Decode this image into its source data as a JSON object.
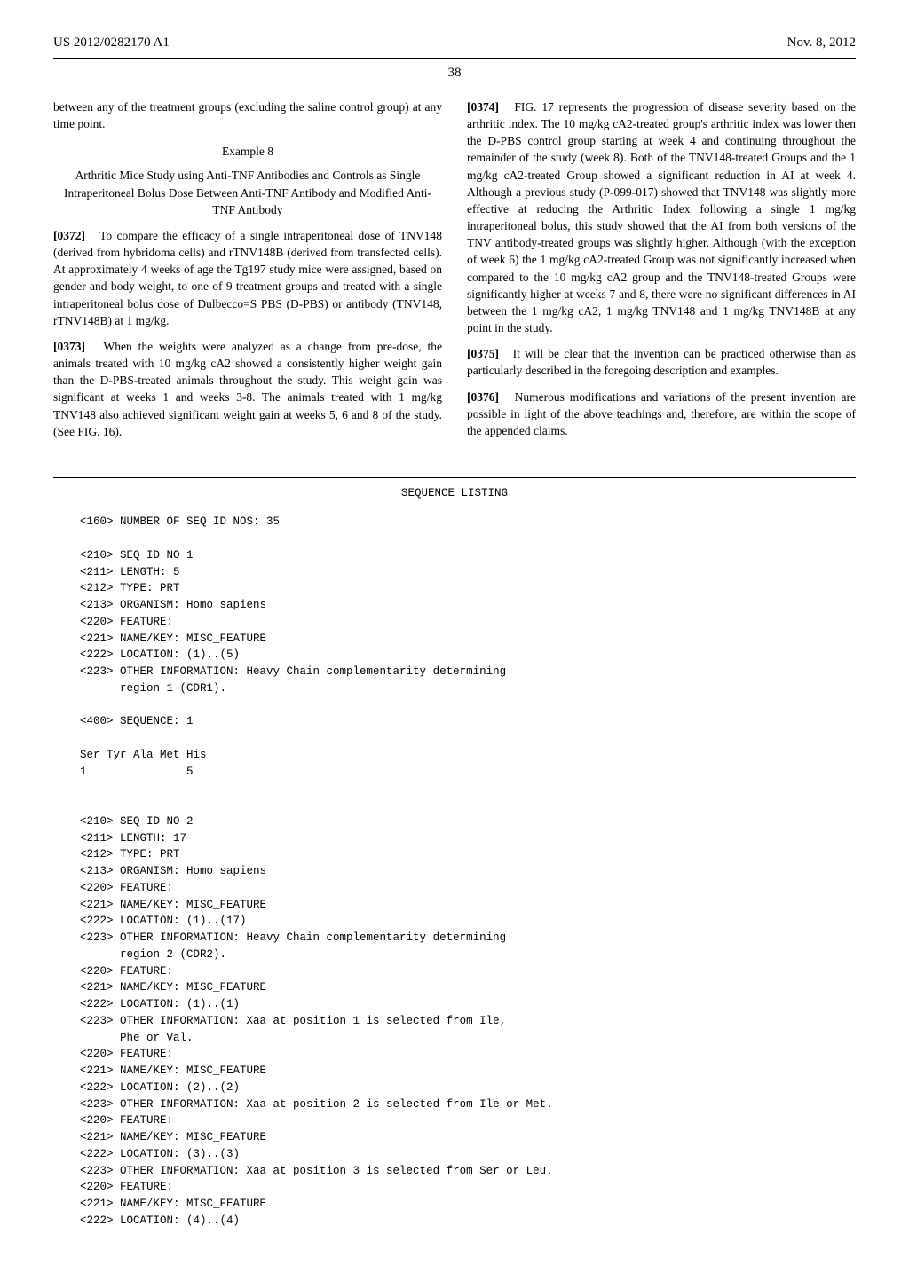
{
  "header": {
    "pub_number": "US 2012/0282170 A1",
    "pub_date": "Nov. 8, 2012"
  },
  "page_number": "38",
  "left_col": {
    "p1": "between any of the treatment groups (excluding the saline control group) at any time point.",
    "example_num": "Example 8",
    "example_title": "Arthritic Mice Study using Anti-TNF Antibodies and Controls as Single Intraperitoneal Bolus Dose Between Anti-TNF Antibody and Modified Anti-TNF Antibody",
    "p372_num": "[0372]",
    "p372": "To compare the efficacy of a single intraperitoneal dose of TNV148 (derived from hybridoma cells) and rTNV148B (derived from transfected cells). At approximately 4 weeks of age the Tg197 study mice were assigned, based on gender and body weight, to one of 9 treatment groups and treated with a single intraperitoneal bolus dose of Dulbecco=S PBS (D-PBS) or antibody (TNV148, rTNV148B) at 1 mg/kg.",
    "p373_num": "[0373]",
    "p373": "When the weights were analyzed as a change from pre-dose, the animals treated with 10 mg/kg cA2 showed a consistently higher weight gain than the D-PBS-treated animals throughout the study. This weight gain was significant at weeks 1 and weeks 3-8. The animals treated with 1 mg/kg TNV148 also achieved significant weight gain at weeks 5, 6 and 8 of the study. (See FIG. 16)."
  },
  "right_col": {
    "p374_num": "[0374]",
    "p374": "FIG. 17 represents the progression of disease severity based on the arthritic index. The 10 mg/kg cA2-treated group's arthritic index was lower then the D-PBS control group starting at week 4 and continuing throughout the remainder of the study (week 8). Both of the TNV148-treated Groups and the 1 mg/kg cA2-treated Group showed a significant reduction in AI at week 4. Although a previous study (P-099-017) showed that TNV148 was slightly more effective at reducing the Arthritic Index following a single 1 mg/kg intraperitoneal bolus, this study showed that the AI from both versions of the TNV antibody-treated groups was slightly higher. Although (with the exception of week 6) the 1 mg/kg cA2-treated Group was not significantly increased when compared to the 10 mg/kg cA2 group and the TNV148-treated Groups were significantly higher at weeks 7 and 8, there were no significant differences in AI between the 1 mg/kg cA2, 1 mg/kg TNV148 and 1 mg/kg TNV148B at any point in the study.",
    "p375_num": "[0375]",
    "p375": "It will be clear that the invention can be practiced otherwise than as particularly described in the foregoing description and examples.",
    "p376_num": "[0376]",
    "p376": "Numerous modifications and variations of the present invention are possible in light of the above teachings and, therefore, are within the scope of the appended claims."
  },
  "seq": {
    "title": "SEQUENCE LISTING",
    "body": "<160> NUMBER OF SEQ ID NOS: 35\n\n<210> SEQ ID NO 1\n<211> LENGTH: 5\n<212> TYPE: PRT\n<213> ORGANISM: Homo sapiens\n<220> FEATURE:\n<221> NAME/KEY: MISC_FEATURE\n<222> LOCATION: (1)..(5)\n<223> OTHER INFORMATION: Heavy Chain complementarity determining\n      region 1 (CDR1).\n\n<400> SEQUENCE: 1\n\nSer Tyr Ala Met His\n1               5\n\n\n<210> SEQ ID NO 2\n<211> LENGTH: 17\n<212> TYPE: PRT\n<213> ORGANISM: Homo sapiens\n<220> FEATURE:\n<221> NAME/KEY: MISC_FEATURE\n<222> LOCATION: (1)..(17)\n<223> OTHER INFORMATION: Heavy Chain complementarity determining\n      region 2 (CDR2).\n<220> FEATURE:\n<221> NAME/KEY: MISC_FEATURE\n<222> LOCATION: (1)..(1)\n<223> OTHER INFORMATION: Xaa at position 1 is selected from Ile,\n      Phe or Val.\n<220> FEATURE:\n<221> NAME/KEY: MISC_FEATURE\n<222> LOCATION: (2)..(2)\n<223> OTHER INFORMATION: Xaa at position 2 is selected from Ile or Met.\n<220> FEATURE:\n<221> NAME/KEY: MISC_FEATURE\n<222> LOCATION: (3)..(3)\n<223> OTHER INFORMATION: Xaa at position 3 is selected from Ser or Leu.\n<220> FEATURE:\n<221> NAME/KEY: MISC_FEATURE\n<222> LOCATION: (4)..(4)"
  }
}
